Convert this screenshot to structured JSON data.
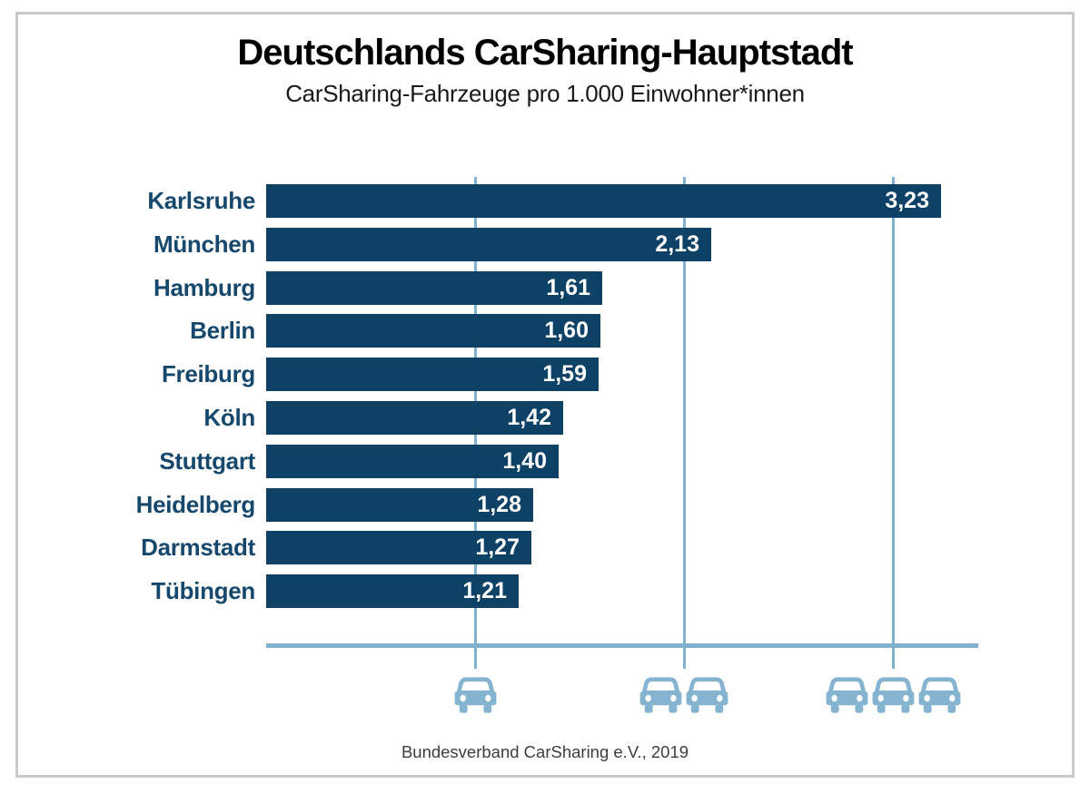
{
  "header": {
    "title": "Deutschlands CarSharing-Hauptstadt",
    "subtitle": "CarSharing-Fahrzeuge pro 1.000 Einwohner*innen"
  },
  "footer": {
    "source": "Bundesverband CarSharing e.V., 2019"
  },
  "colors": {
    "bar": "#0d4166",
    "city_label": "#16486e",
    "grid": "#7fb2ce",
    "car": "#85b4d0",
    "value_label": "#ffffff",
    "frame": "#c9c9c9",
    "title": "#000000",
    "source": "#3d3d3d"
  },
  "icons": {
    "car": "car-icon"
  },
  "chart_data": {
    "type": "bar",
    "orientation": "horizontal",
    "title": "Deutschlands CarSharing-Hauptstadt",
    "subtitle": "CarSharing-Fahrzeuge pro 1.000 Einwohner*innen",
    "categories": [
      "Karlsruhe",
      "München",
      "Hamburg",
      "Berlin",
      "Freiburg",
      "Köln",
      "Stuttgart",
      "Heidelberg",
      "Darmstadt",
      "Tübingen"
    ],
    "values": [
      3.23,
      2.13,
      1.61,
      1.6,
      1.59,
      1.42,
      1.4,
      1.28,
      1.27,
      1.21
    ],
    "value_labels": [
      "3,23",
      "2,13",
      "1,61",
      "1,60",
      "1,59",
      "1,42",
      "1,40",
      "1,28",
      "1,27",
      "1,21"
    ],
    "xlabel": "",
    "ylabel": "",
    "xlim": [
      0,
      3.5
    ],
    "x_ticks": [
      1,
      2,
      3
    ],
    "tick_car_counts": [
      1,
      2,
      3
    ],
    "grid": true,
    "legend": false,
    "value_labels_inside_bars": true,
    "source": "Bundesverband CarSharing e.V., 2019"
  }
}
